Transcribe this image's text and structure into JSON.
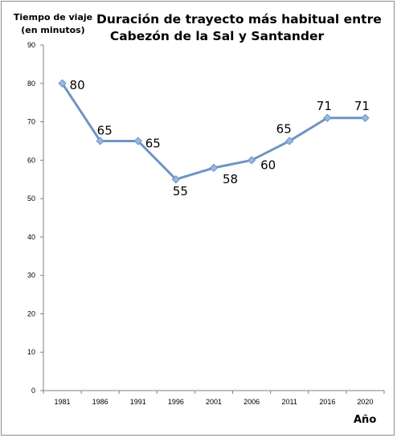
{
  "chart_data": {
    "type": "line",
    "title_lines": [
      "Duración de trayecto más habitual entre",
      "Cabezón de la Sal y Santander"
    ],
    "ylabel_lines": [
      "Tiempo de viaje",
      "(en minutos)"
    ],
    "xlabel": "Año",
    "categories": [
      "1981",
      "1986",
      "1991",
      "1996",
      "2001",
      "2006",
      "2011",
      "2016",
      "2020"
    ],
    "values": [
      80,
      65,
      65,
      55,
      58,
      60,
      65,
      71,
      71
    ],
    "data_labels": [
      "80",
      "65",
      "65",
      "55",
      "58",
      "60",
      "65",
      "71",
      "71"
    ],
    "ylim": [
      0,
      90
    ],
    "yticks": [
      "0",
      "10",
      "20",
      "30",
      "40",
      "50",
      "60",
      "70",
      "80",
      "90"
    ],
    "grid": false,
    "legend": "none",
    "line_color": "#6f94c6",
    "marker_color": "#9ab7df"
  }
}
